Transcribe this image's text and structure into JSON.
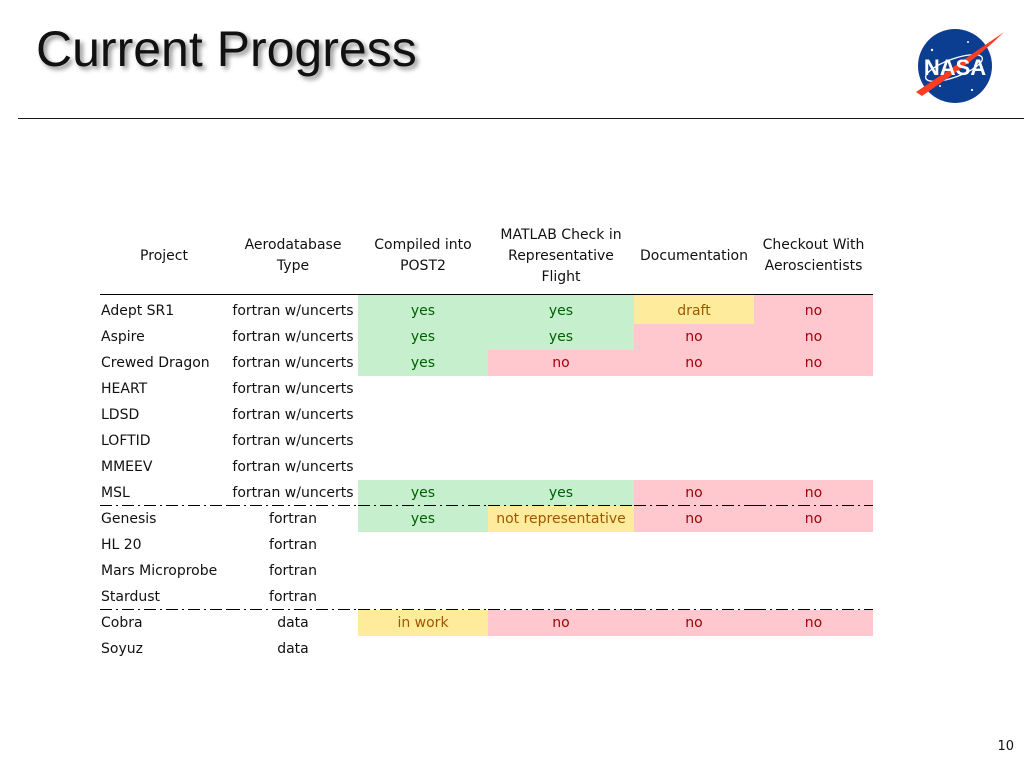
{
  "slide": {
    "title": "Current Progress",
    "page_number": "10",
    "logo": {
      "icon": "nasa-meatball-logo",
      "text": "NASA",
      "colors": {
        "blue": "#0b3d91",
        "red": "#fc3d21"
      }
    }
  },
  "table": {
    "columns": [
      "Project",
      "Aerodatabase Type",
      "Compiled into POST2",
      "MATLAB Check in Representative Flight",
      "Documentation",
      "Checkout With Aeroscientists"
    ],
    "status_colors": {
      "yes": {
        "fill": "#c6efce",
        "text": "#006100"
      },
      "no": {
        "fill": "#ffc7ce",
        "text": "#9c0006"
      },
      "in_progress": {
        "fill": "#ffeb9c",
        "text": "#9c5700"
      }
    },
    "rows": [
      {
        "project": "Adept SR1",
        "type": "fortran w/uncerts",
        "post2": "yes",
        "matlab": "yes",
        "doc": "draft",
        "checkout": "no"
      },
      {
        "project": "Aspire",
        "type": "fortran w/uncerts",
        "post2": "yes",
        "matlab": "yes",
        "doc": "no",
        "checkout": "no"
      },
      {
        "project": "Crewed Dragon",
        "type": "fortran w/uncerts",
        "post2": "yes",
        "matlab": "no",
        "doc": "no",
        "checkout": "no"
      },
      {
        "project": "HEART",
        "type": "fortran w/uncerts",
        "post2": "",
        "matlab": "",
        "doc": "",
        "checkout": ""
      },
      {
        "project": "LDSD",
        "type": "fortran w/uncerts",
        "post2": "",
        "matlab": "",
        "doc": "",
        "checkout": ""
      },
      {
        "project": "LOFTID",
        "type": "fortran w/uncerts",
        "post2": "",
        "matlab": "",
        "doc": "",
        "checkout": ""
      },
      {
        "project": "MMEEV",
        "type": "fortran w/uncerts",
        "post2": "",
        "matlab": "",
        "doc": "",
        "checkout": ""
      },
      {
        "project": "MSL",
        "type": "fortran w/uncerts",
        "post2": "yes",
        "matlab": "yes",
        "doc": "no",
        "checkout": "no"
      },
      {
        "project": "Genesis",
        "type": "fortran",
        "post2": "yes",
        "matlab": "not representative",
        "doc": "no",
        "checkout": "no"
      },
      {
        "project": "HL 20",
        "type": "fortran",
        "post2": "",
        "matlab": "",
        "doc": "",
        "checkout": ""
      },
      {
        "project": "Mars Microprobe",
        "type": "fortran",
        "post2": "",
        "matlab": "",
        "doc": "",
        "checkout": ""
      },
      {
        "project": "Stardust",
        "type": "fortran",
        "post2": "",
        "matlab": "",
        "doc": "",
        "checkout": ""
      },
      {
        "project": "Cobra",
        "type": "data",
        "post2": "in work",
        "matlab": "no",
        "doc": "no",
        "checkout": "no"
      },
      {
        "project": "Soyuz",
        "type": "data",
        "post2": "",
        "matlab": "",
        "doc": "",
        "checkout": ""
      }
    ]
  }
}
